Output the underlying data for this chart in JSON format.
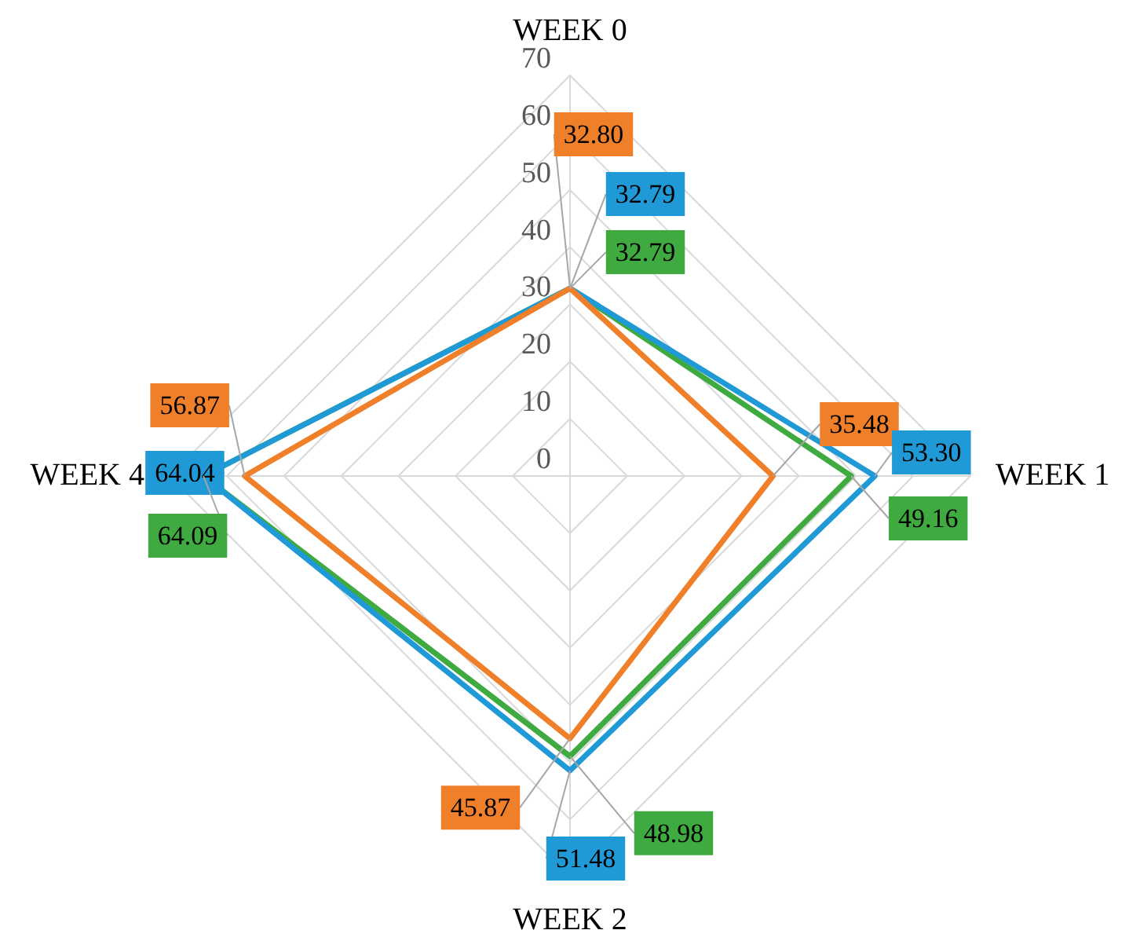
{
  "chart_data": {
    "type": "radar",
    "categories": [
      "WEEK 0",
      "WEEK 1",
      "WEEK 2",
      "WEEK 4"
    ],
    "series": [
      {
        "color": "#f07f2a",
        "values": [
          32.8,
          35.48,
          45.87,
          56.87
        ],
        "value_labels": [
          "32.80",
          "35.48",
          "45.87",
          "56.87"
        ]
      },
      {
        "color": "#1f9ad6",
        "values": [
          32.79,
          53.3,
          51.48,
          64.04
        ],
        "value_labels": [
          "32.79",
          "53.30",
          "51.48",
          "64.04"
        ]
      },
      {
        "color": "#3faa3f",
        "values": [
          32.79,
          49.16,
          48.98,
          64.09
        ],
        "value_labels": [
          "32.79",
          "49.16",
          "48.98",
          "64.09"
        ]
      }
    ],
    "ylim": [
      0,
      70
    ],
    "yticks": [
      0,
      10,
      20,
      30,
      40,
      50,
      60,
      70
    ],
    "grid": true,
    "legend": false,
    "marker": "none",
    "line_style": "solid"
  }
}
